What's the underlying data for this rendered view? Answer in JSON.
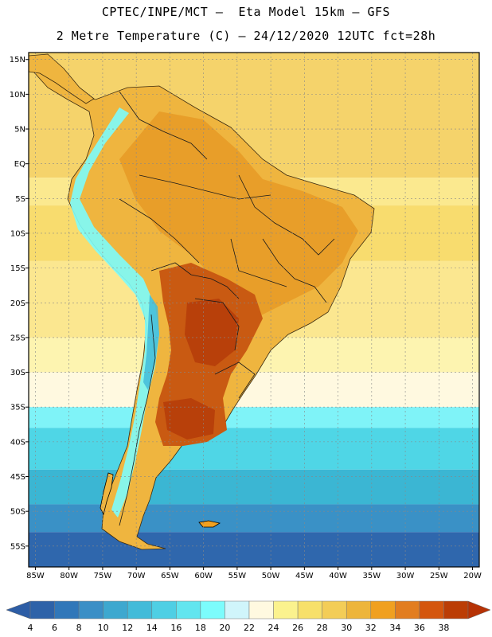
{
  "header": {
    "title_line1": "CPTEC/INPE/MCT –  Eta Model 15km – GFS",
    "title_line2": "2 Metre Temperature (C) – 24/12/2020 12UTC fct=28h"
  },
  "map": {
    "lon_min": -86,
    "lon_max": -19,
    "lat_min": -58,
    "lat_max": 16,
    "lat_ticks": [
      {
        "value": 15,
        "label": "15N"
      },
      {
        "value": 10,
        "label": "10N"
      },
      {
        "value": 5,
        "label": "5N"
      },
      {
        "value": 0,
        "label": "EQ"
      },
      {
        "value": -5,
        "label": "5S"
      },
      {
        "value": -10,
        "label": "10S"
      },
      {
        "value": -15,
        "label": "15S"
      },
      {
        "value": -20,
        "label": "20S"
      },
      {
        "value": -25,
        "label": "25S"
      },
      {
        "value": -30,
        "label": "30S"
      },
      {
        "value": -35,
        "label": "35S"
      },
      {
        "value": -40,
        "label": "40S"
      },
      {
        "value": -45,
        "label": "45S"
      },
      {
        "value": -50,
        "label": "50S"
      },
      {
        "value": -55,
        "label": "55S"
      }
    ],
    "lon_ticks": [
      {
        "value": -85,
        "label": "85W"
      },
      {
        "value": -80,
        "label": "80W"
      },
      {
        "value": -75,
        "label": "75W"
      },
      {
        "value": -70,
        "label": "70W"
      },
      {
        "value": -65,
        "label": "65W"
      },
      {
        "value": -60,
        "label": "60W"
      },
      {
        "value": -55,
        "label": "55W"
      },
      {
        "value": -50,
        "label": "50W"
      },
      {
        "value": -45,
        "label": "45W"
      },
      {
        "value": -40,
        "label": "40W"
      },
      {
        "value": -35,
        "label": "35W"
      },
      {
        "value": -30,
        "label": "30W"
      },
      {
        "value": -25,
        "label": "25W"
      },
      {
        "value": -20,
        "label": "20W"
      }
    ],
    "sea_bands": [
      {
        "lat_top": 16,
        "lat_bottom": -2,
        "color": "#f5d36b"
      },
      {
        "lat_top": -2,
        "lat_bottom": -6,
        "color": "#fbe98f"
      },
      {
        "lat_top": -6,
        "lat_bottom": -14,
        "color": "#f8dc6e"
      },
      {
        "lat_top": -14,
        "lat_bottom": -25,
        "color": "#fbe790"
      },
      {
        "lat_top": -25,
        "lat_bottom": -30,
        "color": "#fdf4b0"
      },
      {
        "lat_top": -30,
        "lat_bottom": -35,
        "color": "#fff9e0"
      },
      {
        "lat_top": -35,
        "lat_bottom": -38,
        "color": "#7ff3f8"
      },
      {
        "lat_top": -38,
        "lat_bottom": -44,
        "color": "#4fd6e6"
      },
      {
        "lat_top": -44,
        "lat_bottom": -49,
        "color": "#3bb6d3"
      },
      {
        "lat_top": -49,
        "lat_bottom": -53,
        "color": "#3a91c6"
      },
      {
        "lat_top": -53,
        "lat_bottom": -58,
        "color": "#2f67ad"
      }
    ]
  },
  "colorbar": {
    "labels": [
      "4",
      "6",
      "8",
      "10",
      "12",
      "14",
      "16",
      "18",
      "20",
      "22",
      "24",
      "26",
      "28",
      "30",
      "32",
      "34",
      "36",
      "38"
    ],
    "colors": [
      "#2e62a8",
      "#3177b9",
      "#3b8fc6",
      "#3ea8cf",
      "#43bbd9",
      "#4fcfe4",
      "#62e5ef",
      "#7cfcfc",
      "#d0f5fb",
      "#fff9e0",
      "#fbf28e",
      "#f7e06a",
      "#f3cd57",
      "#edb53b",
      "#f0a020",
      "#e27d20",
      "#d4560e",
      "#bb3d05"
    ],
    "low_color": "#2d5da5",
    "high_color": "#b63205"
  }
}
